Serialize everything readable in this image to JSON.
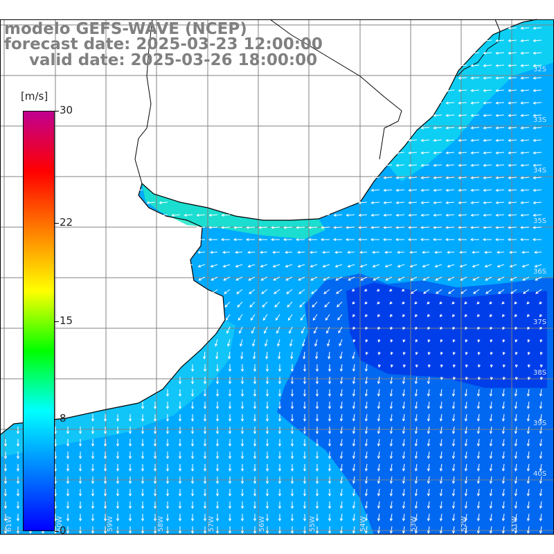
{
  "title": {
    "line1": "modelo GEFS-WAVE (NCEP)",
    "line2": "forecast date: 2025-03-23 12:00:00",
    "line3": "valid date: 2025-03-26 18:00:00"
  },
  "colorbar": {
    "units": "[m/s]",
    "ticks": [
      "30",
      "22",
      "15",
      "8",
      "0"
    ],
    "tick_values": [
      30,
      22,
      15,
      8,
      0
    ],
    "colors": [
      "#0000ff",
      "#0080ff",
      "#00ffff",
      "#00ff00",
      "#ffff00",
      "#ff8000",
      "#ff0000",
      "#c00090"
    ]
  },
  "map": {
    "lat_labels": [
      "32S",
      "33S",
      "34S",
      "35S",
      "36S",
      "37S",
      "38S",
      "39S",
      "40S"
    ],
    "lon_labels": [
      "61W",
      "60W",
      "59W",
      "58W",
      "57W",
      "56W",
      "55W",
      "54W",
      "53W",
      "52W",
      "51W"
    ],
    "colors": {
      "land": "#ffffff",
      "grid": "#808080",
      "coast": "#000000",
      "arrow": "#ffffff",
      "title": "#808080"
    }
  }
}
